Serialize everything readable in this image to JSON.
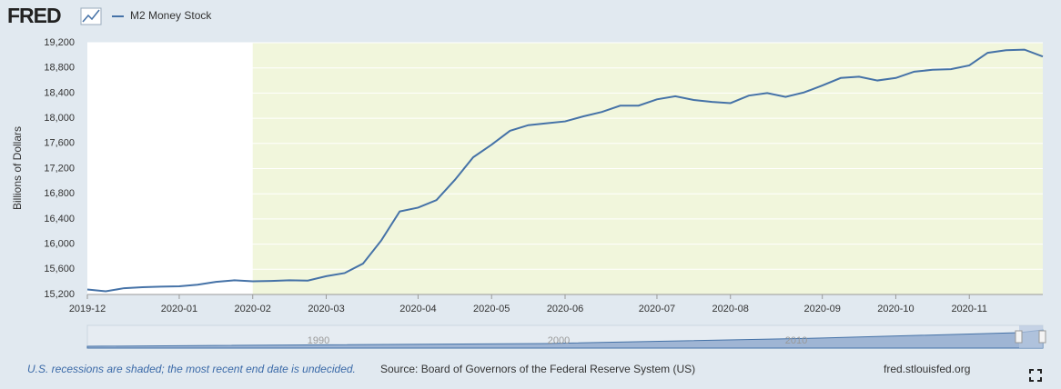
{
  "logo": "FRED",
  "chart_data": {
    "type": "line",
    "y_label": "Billions of Dollars",
    "categories": [
      "2019-12",
      null,
      null,
      null,
      null,
      "2020-01",
      null,
      null,
      null,
      "2020-02",
      null,
      null,
      null,
      "2020-03",
      null,
      null,
      null,
      null,
      "2020-04",
      null,
      null,
      null,
      "2020-05",
      null,
      null,
      null,
      "2020-06",
      null,
      null,
      null,
      null,
      "2020-07",
      null,
      null,
      null,
      "2020-08",
      null,
      null,
      null,
      null,
      "2020-09",
      null,
      null,
      null,
      "2020-10",
      null,
      null,
      null,
      "2020-11",
      null,
      null,
      null,
      null
    ],
    "series": [
      {
        "name": "M2 Money Stock",
        "color": "#4572a7",
        "values": [
          15280,
          15250,
          15300,
          15315,
          15325,
          15330,
          15355,
          15400,
          15425,
          15410,
          15415,
          15425,
          15420,
          15490,
          15540,
          15690,
          16060,
          16520,
          16580,
          16700,
          17020,
          17380,
          17580,
          17800,
          17890,
          17920,
          17950,
          18030,
          18100,
          18200,
          18200,
          18300,
          18350,
          18290,
          18260,
          18240,
          18360,
          18400,
          18340,
          18410,
          18520,
          18640,
          18660,
          18600,
          18640,
          18740,
          18770,
          18780,
          18840,
          19040,
          19080,
          19090,
          18980
        ]
      }
    ],
    "ylim": [
      15200,
      19200
    ],
    "yticks": [
      {
        "value": 15200,
        "label": "15,200"
      },
      {
        "value": 15600,
        "label": "15,600"
      },
      {
        "value": 16000,
        "label": "16,000"
      },
      {
        "value": 16400,
        "label": "16,400"
      },
      {
        "value": 16800,
        "label": "16,800"
      },
      {
        "value": 17200,
        "label": "17,200"
      },
      {
        "value": 17600,
        "label": "17,600"
      },
      {
        "value": 18000,
        "label": "18,000"
      },
      {
        "value": 18400,
        "label": "18,400"
      },
      {
        "value": 18800,
        "label": "18,800"
      },
      {
        "value": 19200,
        "label": "19,200"
      }
    ],
    "grid": true,
    "shaded": {
      "from": 9,
      "color": "#f1f6dc"
    },
    "navigator_labels": [
      "1990",
      "2000",
      "2010"
    ],
    "notes": {
      "recession": "U.S. recessions are shaded; the most recent end date is undecided.",
      "source": "Source: Board of Governors of the Federal Reserve System (US)",
      "site": "fred.stlouisfed.org"
    }
  }
}
